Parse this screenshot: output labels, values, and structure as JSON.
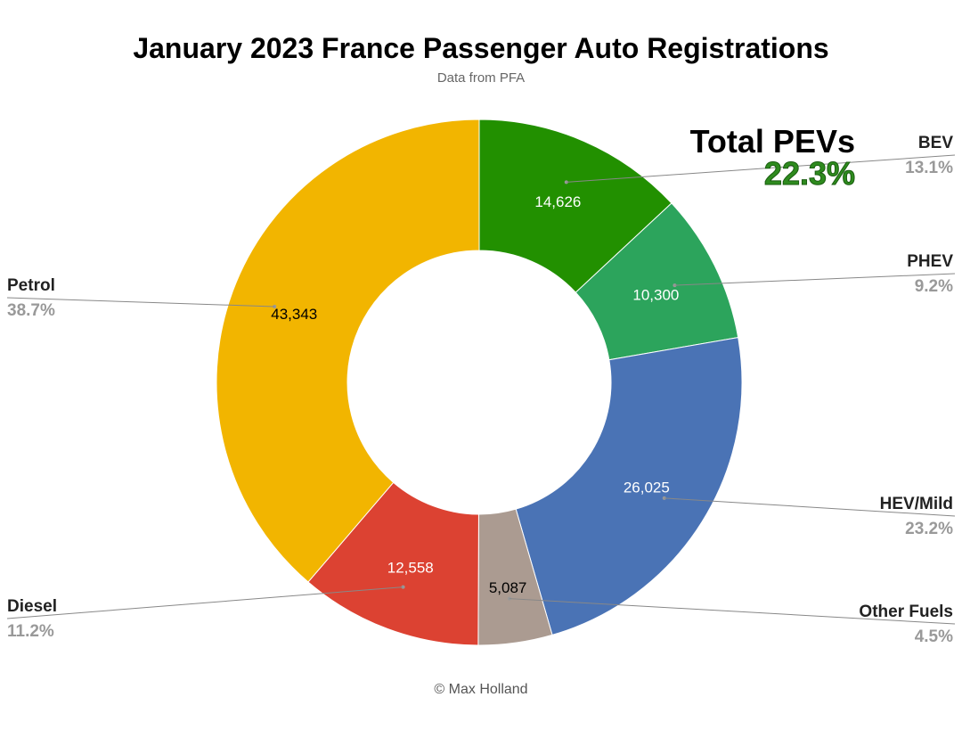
{
  "chart_data": {
    "type": "pie",
    "title": "January 2023 France Passenger Auto Registrations",
    "subtitle": "Data from PFA",
    "credit": "© Max Holland",
    "slices": [
      {
        "name": "BEV",
        "value": 14626,
        "value_label": "14,626",
        "percent_label": "13.1%",
        "color": "#229000",
        "text_color": "#ffffff"
      },
      {
        "name": "PHEV",
        "value": 10300,
        "value_label": "10,300",
        "percent_label": "9.2%",
        "color": "#2ca45c",
        "text_color": "#ffffff"
      },
      {
        "name": "HEV/Mild",
        "value": 26025,
        "value_label": "26,025",
        "percent_label": "23.2%",
        "color": "#4a73b5",
        "text_color": "#ffffff"
      },
      {
        "name": "Other Fuels",
        "value": 5087,
        "value_label": "5,087",
        "percent_label": "4.5%",
        "color": "#ab9b91",
        "text_color": "#000000"
      },
      {
        "name": "Diesel",
        "value": 12558,
        "value_label": "12,558",
        "percent_label": "11.2%",
        "color": "#dc4232",
        "text_color": "#ffffff"
      },
      {
        "name": "Petrol",
        "value": 43343,
        "value_label": "43,343",
        "percent_label": "38.7%",
        "color": "#f2b500",
        "text_color": "#000000"
      }
    ],
    "donut": true,
    "callout": {
      "label": "Total PEVs",
      "value": "22.3%",
      "color": "#2e8b1e"
    }
  }
}
